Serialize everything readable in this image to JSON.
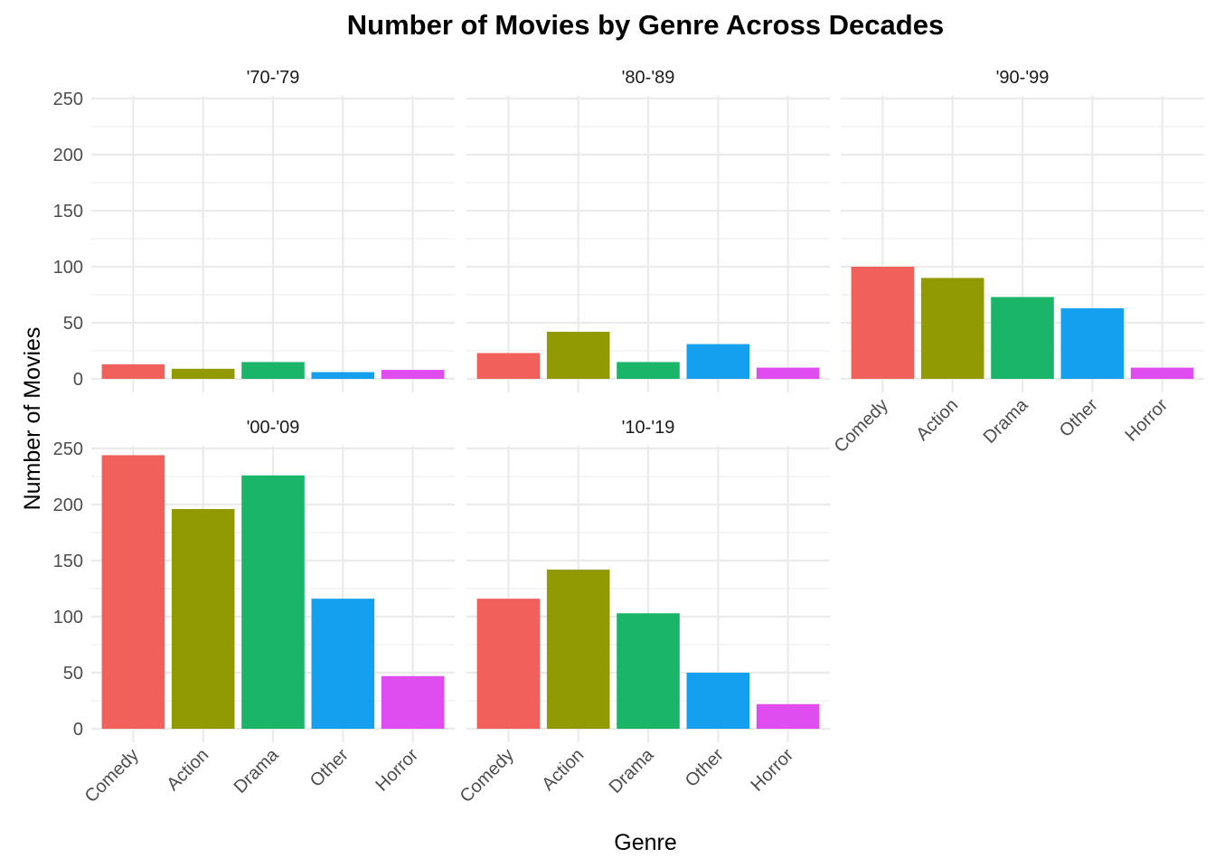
{
  "chart_data": {
    "type": "bar",
    "title": "Number of Movies by Genre Across Decades",
    "xlabel": "Genre",
    "ylabel": "Number of Movies",
    "ylim": [
      0,
      250
    ],
    "yticks": [
      0,
      50,
      100,
      150,
      200,
      250
    ],
    "grid": true,
    "legend": "none",
    "categories": [
      "Comedy",
      "Action",
      "Drama",
      "Other",
      "Horror"
    ],
    "colors": {
      "Comedy": "#F2605C",
      "Action": "#919A02",
      "Drama": "#1BB56A",
      "Other": "#149FEF",
      "Horror": "#DF4CF0"
    },
    "facets": [
      {
        "label": "'70-'79",
        "values": [
          13,
          9,
          15,
          6,
          8
        ]
      },
      {
        "label": "'80-'89",
        "values": [
          23,
          42,
          15,
          31,
          10
        ]
      },
      {
        "label": "'90-'99",
        "values": [
          100,
          90,
          73,
          63,
          10
        ]
      },
      {
        "label": "'00-'09",
        "values": [
          244,
          196,
          226,
          116,
          47
        ]
      },
      {
        "label": "'10-'19",
        "values": [
          116,
          142,
          103,
          50,
          22
        ]
      }
    ]
  }
}
